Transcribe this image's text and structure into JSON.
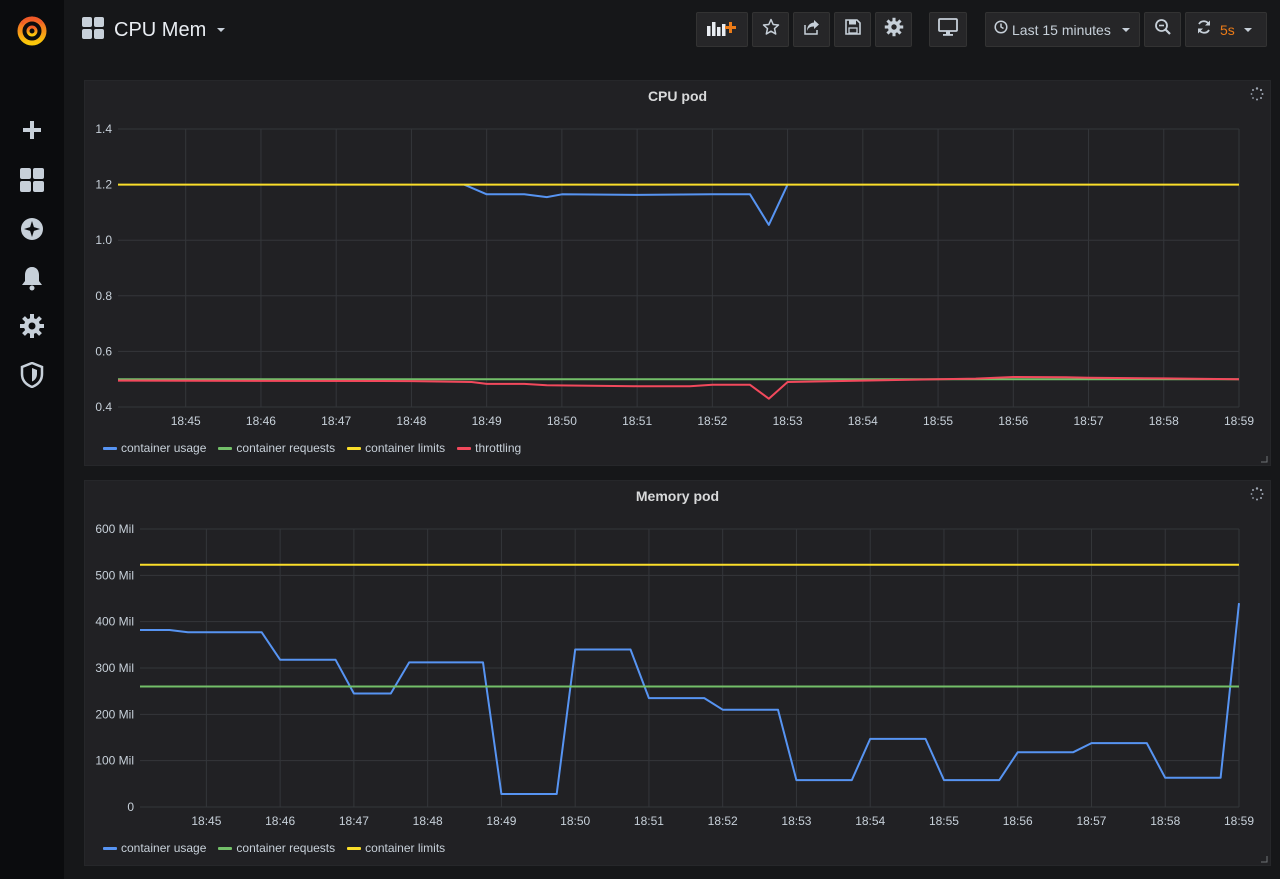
{
  "sidemenu": {
    "items": [
      {
        "name": "grafana-logo-icon"
      },
      {
        "name": "plus-icon"
      },
      {
        "name": "dashboards-icon"
      },
      {
        "name": "explore-compass-icon"
      },
      {
        "name": "alerting-bell-icon"
      },
      {
        "name": "configuration-gear-icon"
      },
      {
        "name": "server-admin-shield-icon"
      }
    ]
  },
  "header": {
    "title": "CPU Mem",
    "time_range": "Last 15 minutes",
    "refresh_interval": "5s"
  },
  "colors": {
    "background": "#161719",
    "panel": "#212124",
    "usage": "#5794f2",
    "requests": "#73bf69",
    "limits": "#fade2a",
    "throttling": "#f2495c",
    "refresh_accent": "#eb7b18",
    "grid": "#34363a"
  },
  "panels": {
    "cpu": {
      "title": "CPU pod",
      "legend": [
        "container usage",
        "container requests",
        "container limits",
        "throttling"
      ]
    },
    "memory": {
      "title": "Memory pod",
      "legend": [
        "container usage",
        "container requests",
        "container limits"
      ]
    }
  },
  "chart_data": [
    {
      "type": "line",
      "title": "CPU pod",
      "xlabel": "",
      "ylabel": "",
      "x_ticks": [
        "18:45",
        "18:46",
        "18:47",
        "18:48",
        "18:49",
        "18:50",
        "18:51",
        "18:52",
        "18:53",
        "18:54",
        "18:55",
        "18:56",
        "18:57",
        "18:58",
        "18:59"
      ],
      "yticks": [
        "0.4",
        "0.6",
        "0.8",
        "1.0",
        "1.2",
        "1.4"
      ],
      "ylim": [
        0.4,
        1.4
      ],
      "xlim": [
        "18:44.1",
        "18:59"
      ],
      "grid": true,
      "legend_position": "bottom-left",
      "series": [
        {
          "name": "container usage",
          "color": "#5794f2",
          "points": [
            [
              "18:48.7",
              1.2
            ],
            [
              "18:49.0",
              1.165
            ],
            [
              "18:49.5",
              1.165
            ],
            [
              "18:49.8",
              1.155
            ],
            [
              "18:50.0",
              1.165
            ],
            [
              "18:51.0",
              1.163
            ],
            [
              "18:52.0",
              1.165
            ],
            [
              "18:52.5",
              1.165
            ],
            [
              "18:52.75",
              1.055
            ],
            [
              "18:53.0",
              1.2
            ]
          ]
        },
        {
          "name": "container requests",
          "color": "#73bf69",
          "points": [
            [
              "18:44.1",
              0.5
            ],
            [
              "18:59",
              0.5
            ]
          ]
        },
        {
          "name": "container limits",
          "color": "#fade2a",
          "points": [
            [
              "18:44.1",
              1.2
            ],
            [
              "18:59",
              1.2
            ]
          ]
        },
        {
          "name": "throttling",
          "color": "#f2495c",
          "points": [
            [
              "18:44.1",
              0.495
            ],
            [
              "18:48.0",
              0.493
            ],
            [
              "18:48.8",
              0.49
            ],
            [
              "18:49.0",
              0.483
            ],
            [
              "18:49.5",
              0.483
            ],
            [
              "18:49.8",
              0.478
            ],
            [
              "18:51.0",
              0.475
            ],
            [
              "18:51.7",
              0.475
            ],
            [
              "18:52.0",
              0.48
            ],
            [
              "18:52.5",
              0.48
            ],
            [
              "18:52.75",
              0.43
            ],
            [
              "18:53.0",
              0.49
            ],
            [
              "18:54.0",
              0.495
            ],
            [
              "18:55.0",
              0.5
            ],
            [
              "18:55.5",
              0.502
            ],
            [
              "18:56.0",
              0.508
            ],
            [
              "18:56.7",
              0.507
            ],
            [
              "18:57.0",
              0.505
            ],
            [
              "18:58.0",
              0.503
            ],
            [
              "18:59",
              0.5
            ]
          ]
        }
      ]
    },
    {
      "type": "line",
      "title": "Memory pod",
      "xlabel": "",
      "ylabel": "",
      "x_ticks": [
        "18:45",
        "18:46",
        "18:47",
        "18:48",
        "18:49",
        "18:50",
        "18:51",
        "18:52",
        "18:53",
        "18:54",
        "18:55",
        "18:56",
        "18:57",
        "18:58",
        "18:59"
      ],
      "yticks": [
        "0",
        "100 Mil",
        "200 Mil",
        "300 Mil",
        "400 Mil",
        "500 Mil",
        "600 Mil"
      ],
      "ylim": [
        0,
        600
      ],
      "xlim": [
        "18:44.1",
        "18:59"
      ],
      "grid": true,
      "legend_position": "bottom-left",
      "series": [
        {
          "name": "container usage",
          "color": "#5794f2",
          "points": [
            [
              "18:44.1",
              382
            ],
            [
              "18:44.5",
              382
            ],
            [
              "18:44.75",
              377
            ],
            [
              "18:45.75",
              377
            ],
            [
              "18:46.0",
              318
            ],
            [
              "18:46.75",
              318
            ],
            [
              "18:47.0",
              245
            ],
            [
              "18:47.5",
              245
            ],
            [
              "18:47.75",
              312
            ],
            [
              "18:48.75",
              312
            ],
            [
              "18:49.0",
              28
            ],
            [
              "18:49.75",
              28
            ],
            [
              "18:50.0",
              340
            ],
            [
              "18:50.75",
              340
            ],
            [
              "18:51.0",
              235
            ],
            [
              "18:51.75",
              235
            ],
            [
              "18:52.0",
              210
            ],
            [
              "18:52.75",
              210
            ],
            [
              "18:53.0",
              58
            ],
            [
              "18:53.75",
              58
            ],
            [
              "18:54.0",
              147
            ],
            [
              "18:54.75",
              147
            ],
            [
              "18:55.0",
              58
            ],
            [
              "18:55.75",
              58
            ],
            [
              "18:56.0",
              118
            ],
            [
              "18:56.75",
              118
            ],
            [
              "18:57.0",
              138
            ],
            [
              "18:57.75",
              138
            ],
            [
              "18:58.0",
              63
            ],
            [
              "18:58.75",
              63
            ],
            [
              "18:59",
              440
            ]
          ]
        },
        {
          "name": "container requests",
          "color": "#73bf69",
          "points": [
            [
              "18:44.1",
              260
            ],
            [
              "18:59",
              260
            ]
          ]
        },
        {
          "name": "container limits",
          "color": "#fade2a",
          "points": [
            [
              "18:44.1",
              523
            ],
            [
              "18:59",
              523
            ]
          ]
        }
      ]
    }
  ]
}
